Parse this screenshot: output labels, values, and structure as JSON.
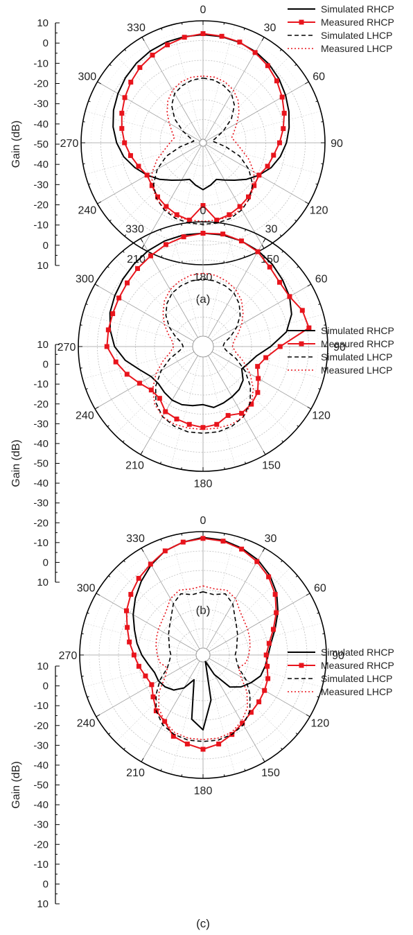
{
  "figure": {
    "ylabel": "Gain (dB)",
    "angle_labels": [
      "0",
      "30",
      "60",
      "90",
      "120",
      "150",
      "180",
      "210",
      "240",
      "270",
      "300",
      "330"
    ],
    "radial_ticks": [
      "10",
      "0",
      "-10",
      "-20",
      "-30",
      "-40",
      "-50"
    ],
    "legend": [
      "Simulated RHCP",
      "Measured RHCP",
      "Simulated LHCP",
      "Measured LHCP"
    ],
    "colors": {
      "simulated": "#000000",
      "measured": "#e8141c",
      "grid": "#bdbdbd"
    }
  },
  "chart_data": [
    {
      "type": "polar-line",
      "caption": "(a)",
      "rlim": [
        -50,
        10
      ],
      "theta_unit": "deg",
      "angles": [
        0,
        10,
        20,
        30,
        40,
        50,
        60,
        70,
        80,
        90,
        100,
        110,
        120,
        130,
        140,
        150,
        160,
        170,
        180,
        190,
        200,
        210,
        220,
        230,
        240,
        250,
        260,
        270,
        280,
        290,
        300,
        310,
        320,
        330,
        340,
        350
      ],
      "series": [
        {
          "name": "Simulated RHCP",
          "style": "solid",
          "markers": false,
          "r": [
            3,
            2.8,
            2.3,
            1.5,
            0.2,
            -1.5,
            -3.5,
            -5.5,
            -7.5,
            -9.5,
            -12,
            -15,
            -19,
            -23,
            -27,
            -30,
            -32,
            -30,
            -28,
            -30,
            -32,
            -30,
            -27,
            -23,
            -19,
            -15,
            -11,
            -8,
            -5.5,
            -3.5,
            -2,
            -0.5,
            0.8,
            1.8,
            2.5,
            2.8
          ]
        },
        {
          "name": "Measured RHCP",
          "style": "solid",
          "markers": true,
          "r": [
            3.5,
            3,
            2.5,
            1,
            -0.8,
            -3,
            -5.5,
            -8,
            -10.5,
            -13,
            -15.5,
            -17,
            -19,
            -18,
            -16,
            -14.5,
            -13,
            -12,
            -20,
            -12,
            -13,
            -14.5,
            -16,
            -18,
            -19,
            -17,
            -14.5,
            -12,
            -10,
            -8,
            -6,
            -4,
            -2,
            -0.5,
            1,
            2.5
          ]
        },
        {
          "name": "Simulated LHCP",
          "style": "dashed",
          "markers": false,
          "r": [
            -19,
            -19.5,
            -21,
            -23,
            -27,
            -33,
            -40,
            -45,
            -47,
            -45,
            -40,
            -32,
            -25,
            -19,
            -15,
            -12.5,
            -11,
            -10.5,
            -10.5,
            -10.5,
            -11,
            -12.5,
            -15,
            -19,
            -25,
            -32,
            -40,
            -45,
            -47,
            -45,
            -40,
            -33,
            -27,
            -23,
            -21,
            -19.5
          ]
        },
        {
          "name": "Measured LHCP",
          "style": "dotted",
          "markers": false,
          "r": [
            -18,
            -18,
            -19,
            -21,
            -24,
            -28,
            -32,
            -35,
            -37,
            -35,
            -32,
            -27,
            -22,
            -18,
            -15,
            -13,
            -12,
            -12,
            -12,
            -12,
            -12,
            -13,
            -15,
            -18,
            -22,
            -27,
            -32,
            -35,
            -37,
            -35,
            -32,
            -28,
            -24,
            -21,
            -19,
            -18
          ]
        }
      ]
    },
    {
      "type": "polar-line",
      "caption": "(b)",
      "rlim": [
        -50,
        10
      ],
      "theta_unit": "deg",
      "angles": [
        0,
        10,
        20,
        30,
        40,
        50,
        60,
        70,
        80,
        90,
        100,
        110,
        120,
        130,
        140,
        150,
        160,
        170,
        180,
        190,
        200,
        210,
        220,
        230,
        240,
        250,
        260,
        270,
        280,
        290,
        300,
        310,
        320,
        330,
        340,
        350
      ],
      "series": [
        {
          "name": "Simulated RHCP",
          "style": "solid",
          "markers": false,
          "r": [
            4,
            4,
            3.5,
            2.5,
            1,
            -1,
            -3,
            -6,
            -11,
            -20,
            -27,
            -30,
            -32,
            -28,
            -26,
            -25,
            -24,
            -23,
            -25,
            -24,
            -23,
            -23,
            -24,
            -25,
            -24,
            -20,
            -14,
            -9,
            -6,
            -3.5,
            -2,
            -0.5,
            1,
            2.5,
            3.5,
            4
          ]
        },
        {
          "name": "Measured RHCP",
          "style": "solid",
          "markers": true,
          "r": [
            4,
            4.5,
            3.5,
            2,
            -1,
            -3,
            -3,
            0,
            1,
            -15,
            -22,
            -25,
            -22,
            -18,
            -16,
            -15,
            -17,
            -14,
            -13,
            -14,
            -15,
            -16,
            -20,
            -20,
            -17,
            -13,
            -9,
            -5,
            -5,
            -5,
            -4.5,
            -3.5,
            -2,
            -0.5,
            1.5,
            3
          ]
        },
        {
          "name": "Simulated LHCP",
          "style": "dashed",
          "markers": false,
          "r": [
            -20,
            -20.5,
            -21.5,
            -23,
            -26,
            -30,
            -35,
            -40,
            -44,
            -45,
            -43,
            -37,
            -30,
            -23,
            -17,
            -13,
            -11,
            -10,
            -10,
            -10,
            -11,
            -13,
            -17,
            -23,
            -30,
            -37,
            -43,
            -45,
            -44,
            -40,
            -35,
            -30,
            -26,
            -23,
            -21.5,
            -20.5
          ]
        },
        {
          "name": "Measured LHCP",
          "style": "dotted",
          "markers": false,
          "r": [
            -17,
            -17.5,
            -19,
            -21,
            -24,
            -28,
            -32,
            -36,
            -39,
            -40,
            -38,
            -33,
            -27,
            -21,
            -16,
            -13,
            -12,
            -12,
            -12,
            -12,
            -12,
            -13,
            -16,
            -21,
            -27,
            -33,
            -38,
            -40,
            -39,
            -36,
            -32,
            -28,
            -24,
            -21,
            -19,
            -17.5
          ]
        }
      ]
    },
    {
      "type": "polar-line",
      "caption": "(c)",
      "rlim": [
        -50,
        10
      ],
      "theta_unit": "deg",
      "angles": [
        0,
        10,
        20,
        30,
        40,
        50,
        60,
        70,
        80,
        90,
        100,
        110,
        120,
        130,
        140,
        150,
        160,
        170,
        180,
        190,
        200,
        210,
        220,
        230,
        240,
        250,
        260,
        270,
        280,
        290,
        300,
        310,
        320,
        330,
        340,
        350
      ],
      "series": [
        {
          "name": "Simulated RHCP",
          "style": "solid",
          "markers": false,
          "r": [
            7,
            6.5,
            5,
            3,
            0,
            -4,
            -9,
            -14,
            -18,
            -20,
            -21,
            -22,
            -25,
            -28,
            -32,
            -42,
            -50,
            -30,
            -15,
            -20,
            -40,
            -34,
            -30,
            -28,
            -27,
            -27,
            -25,
            -22,
            -19,
            -16,
            -12,
            -8,
            -4,
            0,
            3.5,
            5.5
          ]
        },
        {
          "name": "Measured RHCP",
          "style": "solid",
          "markers": true,
          "r": [
            6.5,
            6,
            4.5,
            2,
            -1,
            -5,
            -10,
            -15,
            -19,
            -21,
            -20,
            -18,
            -17,
            -16,
            -15,
            -13,
            -10,
            -7,
            -5,
            -7,
            -9,
            -14,
            -16,
            -20,
            -23,
            -22,
            -20,
            -18,
            -15,
            -12,
            -8,
            -5,
            -2,
            0.5,
            3.5,
            5.5
          ]
        },
        {
          "name": "Simulated LHCP",
          "style": "dashed",
          "markers": false,
          "r": [
            -21,
            -22,
            -20,
            -23,
            -28,
            -31,
            -33,
            -35,
            -36,
            -37,
            -36,
            -34,
            -28,
            -22,
            -16,
            -12,
            -10,
            -9,
            -9,
            -9,
            -10,
            -12,
            -16,
            -22,
            -28,
            -34,
            -36,
            -37,
            -36,
            -35,
            -33,
            -31,
            -28,
            -23,
            -20,
            -22
          ]
        },
        {
          "name": "Measured LHCP",
          "style": "dotted",
          "markers": false,
          "r": [
            -18,
            -19,
            -18,
            -20,
            -24,
            -26,
            -27,
            -28,
            -29,
            -30,
            -31,
            -34,
            -31,
            -24,
            -18,
            -14,
            -11,
            -10,
            -10,
            -10,
            -11,
            -14,
            -18,
            -24,
            -31,
            -34,
            -31,
            -30,
            -29,
            -28,
            -27,
            -26,
            -24,
            -20,
            -18,
            -19
          ]
        }
      ]
    }
  ]
}
